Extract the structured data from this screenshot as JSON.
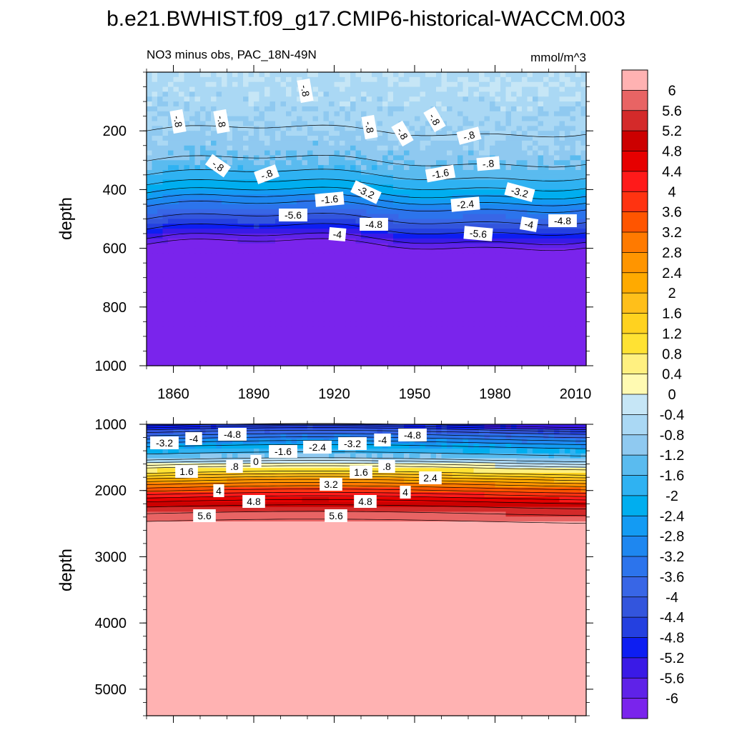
{
  "title": "b.e21.BWHIST.f09_g17.CMIP6-historical-WACCM.003",
  "chart_data": [
    {
      "type": "heatmap",
      "panel": "upper",
      "subtitle": "NO3 minus obs, PAC_18N-49N",
      "units": "mmol/m^3",
      "ylabel": "depth",
      "xlim": [
        1850,
        2014
      ],
      "ylim": [
        1000,
        0
      ],
      "xticks": [
        "1860",
        "1890",
        "1920",
        "1950",
        "1980",
        "2010"
      ],
      "yticks": [
        "200",
        "400",
        "600",
        "800",
        "1000"
      ],
      "depth_profile": {
        "depth": [
          0,
          150,
          250,
          320,
          360,
          400,
          440,
          480,
          520,
          550,
          580,
          600,
          1000
        ],
        "value": [
          -0.4,
          -0.7,
          -0.9,
          -1.3,
          -1.7,
          -2.2,
          -2.9,
          -3.6,
          -4.4,
          -5.2,
          -5.9,
          -6.2,
          -6.2
        ]
      },
      "contour_labels": [
        "-.8",
        "-.8",
        "-.8",
        "-.8",
        "-.8",
        "-.8",
        "-.8",
        "-.8",
        "-.8",
        "-.8",
        "-1.6",
        "-1.6",
        "-3.2",
        "-2.4",
        "-3.2",
        "-2.4",
        "-4",
        "-4.8",
        "-4.8",
        "-4",
        "-5.6",
        "-5.6"
      ]
    },
    {
      "type": "heatmap",
      "panel": "lower",
      "ylabel": "depth",
      "xlim": [
        1850,
        2014
      ],
      "ylim": [
        5400,
        1000
      ],
      "yticks": [
        "1000",
        "2000",
        "3000",
        "4000",
        "5000"
      ],
      "depth_profile": {
        "depth": [
          1000,
          1100,
          1250,
          1400,
          1500,
          1600,
          1700,
          1800,
          1900,
          2000,
          2100,
          2200,
          2300,
          2400,
          2500,
          2600,
          5400
        ],
        "value": [
          -5.5,
          -4.2,
          -3.0,
          -2.0,
          -1.2,
          -0.2,
          0.8,
          1.8,
          2.7,
          3.5,
          4.3,
          5.0,
          5.4,
          5.8,
          6.1,
          6.4,
          6.4
        ]
      },
      "contour_labels": [
        "-3.2",
        "-4",
        "-4.8",
        "-1.6",
        "-2.4",
        "-3.2",
        "-4",
        "-4.8",
        "1.6",
        ".8",
        "0",
        "1.6",
        ".8",
        "2.4",
        "3.2",
        "4",
        "4.8",
        "4.8",
        "4",
        "5.6",
        "5.6"
      ]
    }
  ],
  "colorbar": {
    "labels": [
      "6",
      "5.6",
      "5.2",
      "4.8",
      "4.4",
      "4",
      "3.6",
      "3.2",
      "2.8",
      "2.4",
      "2",
      "1.6",
      "1.2",
      "0.8",
      "0.4",
      "0",
      "-0.4",
      "-0.8",
      "-1.2",
      "-1.6",
      "-2",
      "-2.4",
      "-2.8",
      "-3.2",
      "-3.6",
      "-4",
      "-4.4",
      "-4.8",
      "-5.2",
      "-5.6",
      "-6"
    ],
    "colors": [
      "#FFB2B2",
      "#E86464",
      "#D42A2A",
      "#CC0000",
      "#E60000",
      "#FF1A1A",
      "#FF3311",
      "#FF5500",
      "#FF7A00",
      "#FF9500",
      "#FFAA00",
      "#FFBF1A",
      "#FFD21F",
      "#FFE233",
      "#FFF080",
      "#FFFAB2",
      "#C6E6F6",
      "#AAD8F4",
      "#8FC9F0",
      "#5ABBEF",
      "#2FB2F2",
      "#00AEEF",
      "#139BF3",
      "#1E87F0",
      "#2C74EC",
      "#3866E6",
      "#3355DD",
      "#2440E0",
      "#0D1EF2",
      "#3A1AE6",
      "#5F22E8",
      "#7A24EC"
    ]
  }
}
